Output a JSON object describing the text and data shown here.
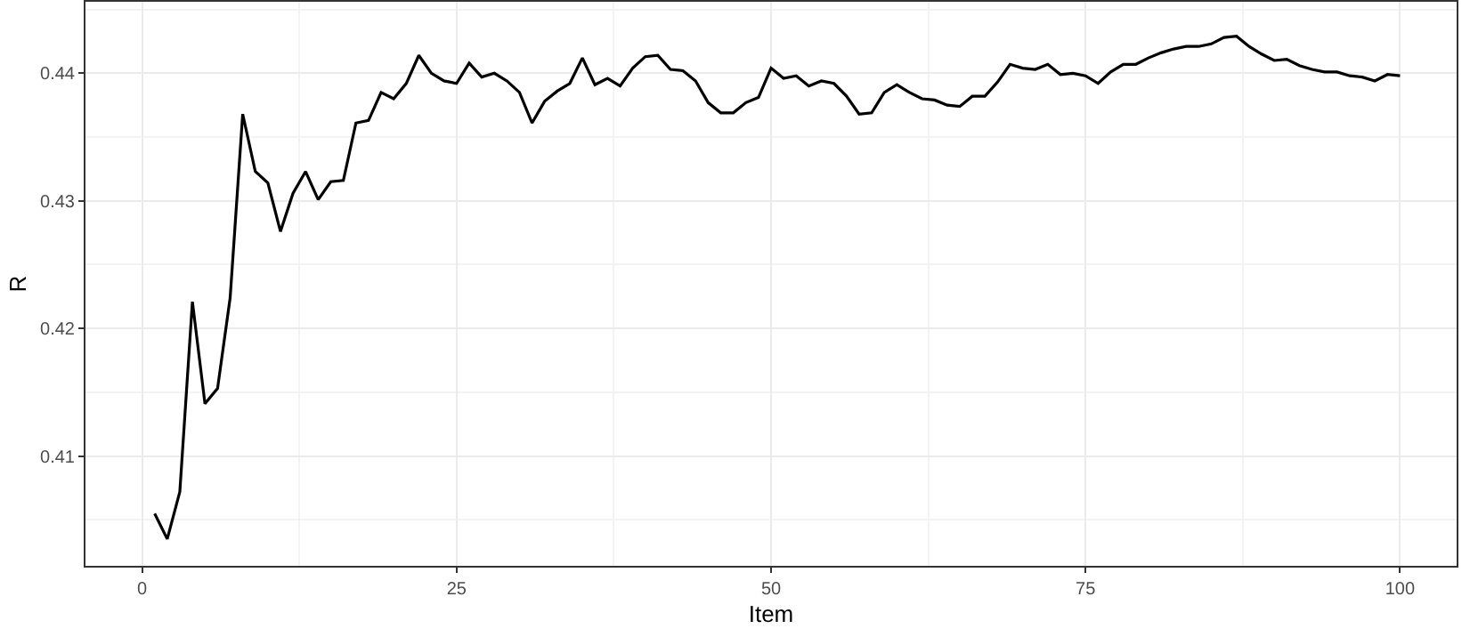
{
  "chart_data": {
    "type": "line",
    "xlabel": "Item",
    "ylabel": "R",
    "x": [
      1,
      2,
      3,
      4,
      5,
      6,
      7,
      8,
      9,
      10,
      11,
      12,
      13,
      14,
      15,
      16,
      17,
      18,
      19,
      20,
      21,
      22,
      23,
      24,
      25,
      26,
      27,
      28,
      29,
      30,
      31,
      32,
      33,
      34,
      35,
      36,
      37,
      38,
      39,
      40,
      41,
      42,
      43,
      44,
      45,
      46,
      47,
      48,
      49,
      50,
      51,
      52,
      53,
      54,
      55,
      56,
      57,
      58,
      59,
      60,
      61,
      62,
      63,
      64,
      65,
      66,
      67,
      68,
      69,
      70,
      71,
      72,
      73,
      74,
      75,
      76,
      77,
      78,
      79,
      80,
      81,
      82,
      83,
      84,
      85,
      86,
      87,
      88,
      89,
      90,
      91,
      92,
      93,
      94,
      95,
      96,
      97,
      98,
      99,
      100
    ],
    "series": [
      {
        "color": "#000000",
        "values": [
          0.4055,
          0.4035,
          0.4072,
          0.4221,
          0.4141,
          0.4153,
          0.4224,
          0.4368,
          0.4323,
          0.4314,
          0.4276,
          0.4306,
          0.4323,
          0.4301,
          0.4315,
          0.4316,
          0.4361,
          0.4363,
          0.4385,
          0.438,
          0.4392,
          0.4414,
          0.44,
          0.4394,
          0.4392,
          0.4408,
          0.4397,
          0.44,
          0.4394,
          0.4385,
          0.4361,
          0.4378,
          0.4386,
          0.4392,
          0.4412,
          0.4391,
          0.4396,
          0.439,
          0.4404,
          0.4413,
          0.4414,
          0.4403,
          0.4402,
          0.4394,
          0.4377,
          0.4369,
          0.4369,
          0.4377,
          0.4381,
          0.4404,
          0.4396,
          0.4398,
          0.439,
          0.4394,
          0.4392,
          0.4382,
          0.4368,
          0.4369,
          0.4385,
          0.4391,
          0.4385,
          0.438,
          0.4379,
          0.4375,
          0.4374,
          0.4382,
          0.4382,
          0.4393,
          0.4407,
          0.4404,
          0.4403,
          0.4407,
          0.4399,
          0.44,
          0.4398,
          0.4392,
          0.4401,
          0.4407,
          0.4407,
          0.4412,
          0.4416,
          0.4419,
          0.4421,
          0.4421,
          0.4423,
          0.4428,
          0.4429,
          0.4421,
          0.4415,
          0.441,
          0.4411,
          0.4406,
          0.4403,
          0.4401,
          0.4401,
          0.4398,
          0.4397,
          0.4394,
          0.4399,
          0.4398
        ]
      }
    ],
    "xlim": [
      -4.5,
      104.5
    ],
    "xticks": [
      0,
      25,
      50,
      75,
      100
    ],
    "ylim": [
      0.4014,
      0.4456
    ],
    "yticks": [
      0.41,
      0.42,
      0.43,
      0.44
    ],
    "grid": true,
    "marker": "none",
    "line_style": "solid"
  }
}
